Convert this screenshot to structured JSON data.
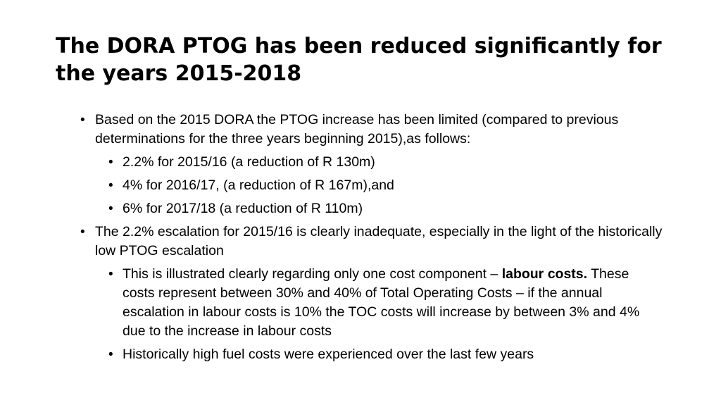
{
  "slide": {
    "title": "The DORA PTOG has been reduced significantly for the years 2015-2018",
    "bullet_glyph": "•",
    "items": [
      {
        "level": 1,
        "text": "Based on the 2015 DORA the PTOG increase has been limited  (compared to previous determinations for the three years beginning 2015),as follows:"
      },
      {
        "level": 2,
        "text": "2.2% for 2015/16 (a reduction of R 130m)"
      },
      {
        "level": 2,
        "text": "4% for 2016/17, (a reduction of R 167m),and"
      },
      {
        "level": 2,
        "text": "6% for 2017/18 (a reduction of R 110m)"
      },
      {
        "level": 1,
        "text": "The 2.2% escalation for 2015/16 is clearly inadequate, especially in the light of the historically low PTOG escalation"
      },
      {
        "level": 2,
        "text_before": "This is illustrated clearly regarding only one cost component – ",
        "text_bold": "labour costs.",
        "text_after": " These costs represent between 30% and 40% of Total Operating Costs – if the annual escalation in labour costs is 10% the TOC costs will increase by between 3% and 4% due to the increase in labour costs"
      },
      {
        "level": 2,
        "text": "Historically high fuel costs were experienced over the last few years"
      }
    ]
  }
}
